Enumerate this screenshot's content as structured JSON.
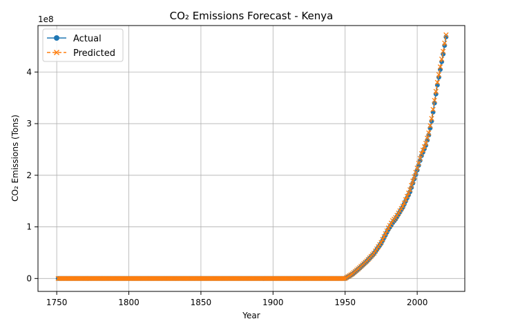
{
  "chart_data": {
    "type": "line",
    "title": "CO₂ Emissions Forecast - Kenya",
    "xlabel": "Year",
    "ylabel": "CO₂ Emissions (Tons)",
    "y_offset_label": "1e8",
    "xlim": [
      1737,
      2033
    ],
    "ylim": [
      -25000000,
      490000000
    ],
    "xticks": [
      1750,
      1800,
      1850,
      1900,
      1950,
      2000
    ],
    "yticks": [
      0,
      100000000,
      200000000,
      300000000,
      400000000
    ],
    "ytick_labels": [
      "0",
      "1",
      "2",
      "3",
      "4"
    ],
    "grid": true,
    "legend_position": "top-left",
    "colors": {
      "actual": "#1f77b4",
      "predicted": "#ff7f0e",
      "grid": "#b0b0b0"
    },
    "x_start": 1751,
    "x_end": 2020,
    "series": [
      {
        "name": "Actual",
        "style": "solid-circle",
        "flat_until": 1950,
        "points": [
          [
            1950,
            0
          ],
          [
            1955,
            8000000
          ],
          [
            1960,
            20000000
          ],
          [
            1965,
            33000000
          ],
          [
            1970,
            48000000
          ],
          [
            1975,
            68000000
          ],
          [
            1980,
            95000000
          ],
          [
            1983,
            108000000
          ],
          [
            1985,
            115000000
          ],
          [
            1990,
            138000000
          ],
          [
            1995,
            168000000
          ],
          [
            2000,
            210000000
          ],
          [
            2003,
            238000000
          ],
          [
            2006,
            258000000
          ],
          [
            2008,
            278000000
          ],
          [
            2010,
            305000000
          ],
          [
            2012,
            340000000
          ],
          [
            2014,
            375000000
          ],
          [
            2016,
            405000000
          ],
          [
            2018,
            435000000
          ],
          [
            2020,
            468000000
          ]
        ]
      },
      {
        "name": "Predicted",
        "style": "dashed-x",
        "flat_until": 1950,
        "points": [
          [
            1950,
            0
          ],
          [
            1955,
            9000000
          ],
          [
            1960,
            21000000
          ],
          [
            1965,
            34000000
          ],
          [
            1970,
            49000000
          ],
          [
            1975,
            70000000
          ],
          [
            1980,
            98000000
          ],
          [
            1983,
            112000000
          ],
          [
            1985,
            118000000
          ],
          [
            1990,
            140000000
          ],
          [
            1995,
            172000000
          ],
          [
            2000,
            214000000
          ],
          [
            2003,
            242000000
          ],
          [
            2006,
            262000000
          ],
          [
            2008,
            282000000
          ],
          [
            2010,
            310000000
          ],
          [
            2012,
            345000000
          ],
          [
            2014,
            380000000
          ],
          [
            2016,
            410000000
          ],
          [
            2018,
            440000000
          ],
          [
            2020,
            472000000
          ]
        ]
      }
    ]
  }
}
